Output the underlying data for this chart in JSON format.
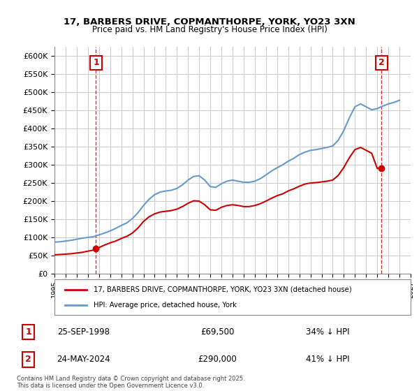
{
  "title": "17, BARBERS DRIVE, COPMANTHORPE, YORK, YO23 3XN",
  "subtitle": "Price paid vs. HM Land Registry's House Price Index (HPI)",
  "footnote": "Contains HM Land Registry data © Crown copyright and database right 2025.\nThis data is licensed under the Open Government Licence v3.0.",
  "legend_label_red": "17, BARBERS DRIVE, COPMANTHORPE, YORK, YO23 3XN (detached house)",
  "legend_label_blue": "HPI: Average price, detached house, York",
  "marker1_label": "1",
  "marker1_date": "25-SEP-1998",
  "marker1_price": "£69,500",
  "marker1_hpi": "34% ↓ HPI",
  "marker2_label": "2",
  "marker2_date": "24-MAY-2024",
  "marker2_price": "£290,000",
  "marker2_hpi": "41% ↓ HPI",
  "color_red": "#cc0000",
  "color_blue": "#6699cc",
  "color_dashed_red": "#cc0000",
  "background_color": "#ffffff",
  "grid_color": "#cccccc",
  "ylim": [
    0,
    625000
  ],
  "yticks": [
    0,
    50000,
    100000,
    150000,
    200000,
    250000,
    300000,
    350000,
    400000,
    450000,
    500000,
    550000,
    600000
  ],
  "xlim_start": 1995.0,
  "xlim_end": 2027.0,
  "sale1_x": 1998.73,
  "sale1_y": 69500,
  "sale2_x": 2024.39,
  "sale2_y": 290000,
  "hpi_x": [
    1995,
    1995.5,
    1996,
    1996.5,
    1997,
    1997.5,
    1998,
    1998.5,
    1999,
    1999.5,
    2000,
    2000.5,
    2001,
    2001.5,
    2002,
    2002.5,
    2003,
    2003.5,
    2004,
    2004.5,
    2005,
    2005.5,
    2006,
    2006.5,
    2007,
    2007.5,
    2008,
    2008.5,
    2009,
    2009.5,
    2010,
    2010.5,
    2011,
    2011.5,
    2012,
    2012.5,
    2013,
    2013.5,
    2014,
    2014.5,
    2015,
    2015.5,
    2016,
    2016.5,
    2017,
    2017.5,
    2018,
    2018.5,
    2019,
    2019.5,
    2020,
    2020.5,
    2021,
    2021.5,
    2022,
    2022.5,
    2023,
    2023.5,
    2024,
    2024.5,
    2025,
    2025.5,
    2026
  ],
  "hpi_y": [
    87000,
    88000,
    90000,
    92000,
    95000,
    98000,
    100000,
    102000,
    107000,
    112000,
    118000,
    125000,
    133000,
    140000,
    152000,
    168000,
    188000,
    205000,
    218000,
    225000,
    228000,
    230000,
    235000,
    245000,
    258000,
    268000,
    270000,
    258000,
    240000,
    238000,
    248000,
    255000,
    258000,
    255000,
    252000,
    252000,
    255000,
    262000,
    272000,
    283000,
    292000,
    300000,
    310000,
    318000,
    328000,
    335000,
    340000,
    342000,
    345000,
    348000,
    352000,
    368000,
    395000,
    430000,
    460000,
    468000,
    460000,
    452000,
    455000,
    462000,
    468000,
    472000,
    478000
  ],
  "red_x": [
    1995,
    1995.5,
    1996,
    1996.5,
    1997,
    1997.5,
    1998,
    1998.5,
    1999,
    1999.5,
    2000,
    2000.5,
    2001,
    2001.5,
    2002,
    2002.5,
    2003,
    2003.5,
    2004,
    2004.5,
    2005,
    2005.5,
    2006,
    2006.5,
    2007,
    2007.5,
    2008,
    2008.5,
    2009,
    2009.5,
    2010,
    2010.5,
    2011,
    2011.5,
    2012,
    2012.5,
    2013,
    2013.5,
    2014,
    2014.5,
    2015,
    2015.5,
    2016,
    2016.5,
    2017,
    2017.5,
    2018,
    2018.5,
    2019,
    2019.5,
    2020,
    2020.5,
    2021,
    2021.5,
    2022,
    2022.5,
    2023,
    2023.5,
    2024,
    2024.5
  ],
  "red_y": [
    52000,
    53000,
    54000,
    55000,
    57000,
    59000,
    62000,
    65000,
    72000,
    79000,
    85000,
    90000,
    97000,
    103000,
    112000,
    126000,
    144000,
    157000,
    165000,
    170000,
    172000,
    174000,
    178000,
    185000,
    194000,
    201000,
    200000,
    190000,
    176000,
    175000,
    183000,
    188000,
    190000,
    188000,
    185000,
    185000,
    188000,
    193000,
    200000,
    208000,
    215000,
    220000,
    228000,
    234000,
    241000,
    247000,
    250000,
    251000,
    253000,
    255000,
    258000,
    271000,
    293000,
    320000,
    342000,
    348000,
    340000,
    332000,
    290000,
    295000
  ]
}
